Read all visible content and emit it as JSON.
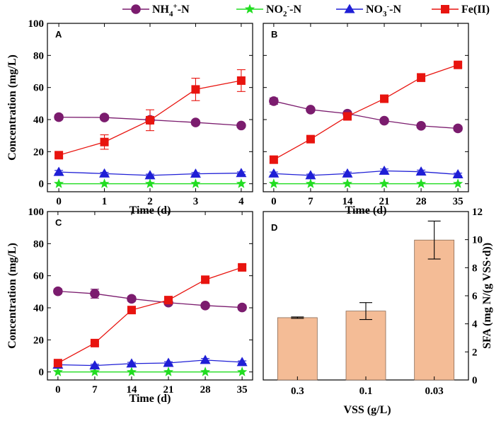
{
  "legend": [
    {
      "label": "NH",
      "sub": "4",
      "sup": "+",
      "suffix": "-N",
      "color": "#7b1c6e",
      "marker": "circle"
    },
    {
      "label": "NO",
      "sub": "2",
      "sup": "-",
      "suffix": "-N",
      "color": "#22dd22",
      "marker": "star"
    },
    {
      "label": "NO",
      "sub": "3",
      "sup": "-",
      "suffix": "-N",
      "color": "#1f1fd6",
      "marker": "triangle"
    },
    {
      "label": "Fe(II)",
      "sub": "",
      "sup": "",
      "suffix": "",
      "color": "#e8140f",
      "marker": "square"
    }
  ],
  "chart_data": [
    {
      "panel": "A",
      "type": "line",
      "title": "",
      "xlabel": "Time (d)",
      "ylabel": "Concentration (mg/L)",
      "x": [
        0,
        1,
        2,
        3,
        4
      ],
      "xticks": [
        "0",
        "1",
        "2",
        "3",
        "4"
      ],
      "xlim": [
        -0.25,
        4.25
      ],
      "ylim": [
        -5,
        100
      ],
      "yticks": [
        0,
        20,
        40,
        60,
        80,
        100
      ],
      "series": [
        {
          "name": "NH4+-N",
          "values": [
            41.5,
            41.3,
            39.8,
            38.2,
            36.3
          ],
          "errors": [
            1.5,
            1.5,
            1.2,
            1.3,
            1.2
          ]
        },
        {
          "name": "NO2--N",
          "values": [
            0,
            0,
            0,
            0,
            0
          ],
          "errors": [
            0,
            0,
            0,
            0,
            0
          ]
        },
        {
          "name": "NO3--N",
          "values": [
            7.3,
            6.3,
            5.2,
            6.2,
            6.6
          ],
          "errors": [
            1.0,
            0.8,
            0.8,
            0.8,
            0.8
          ]
        },
        {
          "name": "Fe(II)",
          "values": [
            17.8,
            26.0,
            39.6,
            58.8,
            64.3
          ],
          "errors": [
            1.5,
            4.5,
            6.5,
            7.0,
            6.8
          ]
        }
      ]
    },
    {
      "panel": "B",
      "type": "line",
      "title": "",
      "xlabel": "Time (d)",
      "ylabel": "",
      "x": [
        0,
        7,
        14,
        21,
        28,
        35
      ],
      "xticks": [
        "0",
        "7",
        "14",
        "21",
        "28",
        "35"
      ],
      "xlim": [
        -2.0,
        37.0
      ],
      "ylim": [
        -5,
        100
      ],
      "yticks": [
        0,
        20,
        40,
        60,
        80,
        100
      ],
      "series": [
        {
          "name": "NH4+-N",
          "values": [
            51.5,
            46.2,
            43.7,
            39.3,
            36.1,
            34.5
          ],
          "errors": [
            2.0,
            1.2,
            1.0,
            1.0,
            1.2,
            1.5
          ]
        },
        {
          "name": "NO2--N",
          "values": [
            0,
            0,
            0,
            0,
            0,
            0
          ],
          "errors": [
            0,
            0,
            0,
            0,
            0,
            0
          ]
        },
        {
          "name": "NO3--N",
          "values": [
            6.3,
            5.2,
            6.3,
            8.0,
            7.5,
            5.8
          ],
          "errors": [
            1.0,
            0.8,
            1.0,
            1.2,
            1.0,
            0.8
          ]
        },
        {
          "name": "Fe(II)",
          "values": [
            15.0,
            27.8,
            42.0,
            53.0,
            66.2,
            74.1
          ],
          "errors": [
            2.0,
            1.5,
            1.5,
            1.5,
            2.5,
            1.5
          ]
        }
      ]
    },
    {
      "panel": "C",
      "type": "line",
      "title": "",
      "xlabel": "Time (d)",
      "ylabel": "Concentration (mg/L)",
      "x": [
        0,
        7,
        14,
        21,
        28,
        35
      ],
      "xticks": [
        "0",
        "7",
        "14",
        "21",
        "28",
        "35"
      ],
      "xlim": [
        -2.0,
        37.0
      ],
      "ylim": [
        -5,
        100
      ],
      "yticks": [
        0,
        20,
        40,
        60,
        80,
        100
      ],
      "series": [
        {
          "name": "NH4+-N",
          "values": [
            50.3,
            48.8,
            45.6,
            43.2,
            41.4,
            40.2
          ],
          "errors": [
            1.5,
            2.8,
            1.5,
            1.2,
            1.2,
            1.5
          ]
        },
        {
          "name": "NO2--N",
          "values": [
            0,
            0,
            0,
            0,
            0,
            0
          ],
          "errors": [
            0,
            0,
            0,
            0,
            0,
            0
          ]
        },
        {
          "name": "NO3--N",
          "values": [
            4.5,
            4.0,
            5.2,
            5.6,
            7.4,
            6.1
          ],
          "errors": [
            0.8,
            0.8,
            0.8,
            0.8,
            1.0,
            0.8
          ]
        },
        {
          "name": "Fe(II)",
          "values": [
            5.5,
            18.0,
            38.6,
            44.8,
            57.5,
            65.2
          ],
          "errors": [
            1.0,
            1.0,
            1.0,
            1.2,
            1.0,
            1.5
          ]
        }
      ]
    },
    {
      "panel": "D",
      "type": "bar",
      "title": "",
      "xlabel": "VSS (g/L)",
      "ylabel": "SFA (mg N/(g VSS·d))",
      "categories": [
        "0.3",
        "0.1",
        "0.03"
      ],
      "values": [
        4.44,
        4.91,
        9.97
      ],
      "errors": [
        0.05,
        0.6,
        1.35
      ],
      "ylim": [
        0,
        12
      ],
      "yticks": [
        0,
        2,
        4,
        6,
        8,
        10,
        12
      ],
      "bar_color": "#f4bc96",
      "bar_edge": "#8a6a55"
    }
  ]
}
